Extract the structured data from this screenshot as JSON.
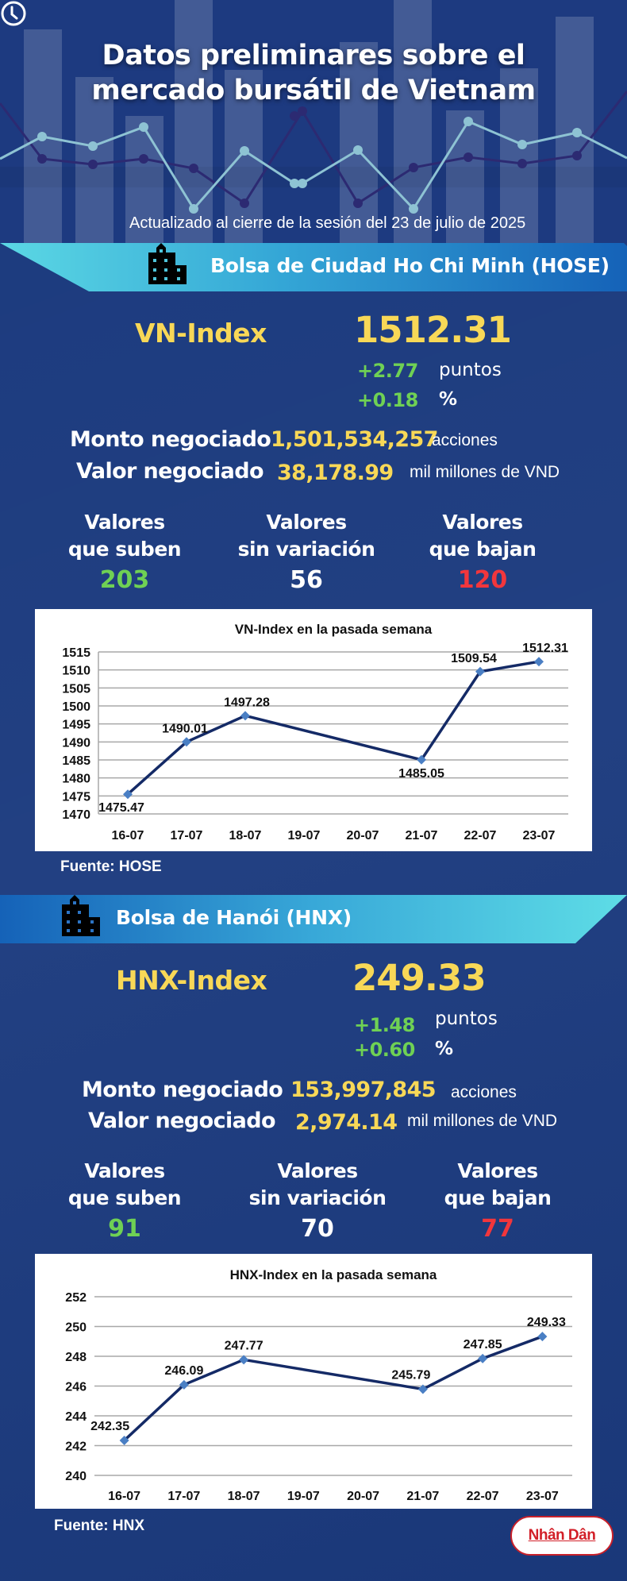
{
  "header": {
    "title_line1": "Datos preliminares sobre el",
    "title_line2": "mercado bursátil de Vietnam",
    "updated": "Actualizado al cierre de la sesión del 23 de julio de 2025",
    "clock_icon": "clock-icon"
  },
  "colors": {
    "background": "#1b3a7e",
    "yellow": "#f8d857",
    "green": "#6fd154",
    "red": "#f2363c",
    "banner_light": "#5bd8e4",
    "banner_dark": "#1562b8",
    "chart_line": "#142a66",
    "chart_marker": "#4a7fc4"
  },
  "hose": {
    "banner": "Bolsa de Ciudad Ho Chi Minh (HOSE)",
    "building_icon": "building-icon",
    "index_name": "VN-Index",
    "index_value": "1512.31",
    "change_points": "+2.77",
    "change_points_unit": "puntos",
    "change_pct": "+0.18",
    "change_pct_unit": "%",
    "volume_label": "Monto negociado",
    "volume_value": "1,501,534,257",
    "volume_unit": "acciones",
    "value_label": "Valor negociado",
    "value_value": "38,178.99",
    "value_unit": "mil millones de VND",
    "up_label_1": "Valores",
    "up_label_2": "que suben",
    "up_count": "203",
    "flat_label_1": "Valores",
    "flat_label_2": "sin variación",
    "flat_count": "56",
    "down_label_1": "Valores",
    "down_label_2": "que bajan",
    "down_count": "120",
    "source": "Fuente: HOSE"
  },
  "hnx": {
    "banner": "Bolsa de Hanói (HNX)",
    "building_icon": "building-icon",
    "index_name": "HNX-Index",
    "index_value": "249.33",
    "change_points": "+1.48",
    "change_points_unit": "puntos",
    "change_pct": "+0.60",
    "change_pct_unit": "%",
    "volume_label": "Monto negociado",
    "volume_value": "153,997,845",
    "volume_unit": "acciones",
    "value_label": "Valor negociado",
    "value_value": "2,974.14",
    "value_unit": "mil millones de VND",
    "up_label_1": "Valores",
    "up_label_2": "que suben",
    "up_count": "91",
    "flat_label_1": "Valores",
    "flat_label_2": "sin variación",
    "flat_count": "70",
    "down_label_1": "Valores",
    "down_label_2": "que bajan",
    "down_count": "77",
    "source": "Fuente:  HNX"
  },
  "logo": {
    "text": "Nhân Dân"
  },
  "chart_data": [
    {
      "type": "line",
      "title": "VN-Index en la pasada semana",
      "categories": [
        "16-07",
        "17-07",
        "18-07",
        "19-07",
        "20-07",
        "21-07",
        "22-07",
        "23-07"
      ],
      "series": [
        {
          "name": "VN-Index",
          "x": [
            "16-07",
            "17-07",
            "18-07",
            "21-07",
            "22-07",
            "23-07"
          ],
          "values": [
            1475.47,
            1490.01,
            1497.28,
            1485.05,
            1509.54,
            1512.31
          ]
        }
      ],
      "data_labels": [
        "1475.47",
        "1490.01",
        "1497.28",
        "1485.05",
        "1509.54",
        "1512.31"
      ],
      "xlabel": "",
      "ylabel": "",
      "ylim": [
        1470,
        1515
      ],
      "yticks": [
        1470,
        1475,
        1480,
        1485,
        1490,
        1495,
        1500,
        1505,
        1510,
        1515
      ],
      "grid": true,
      "legend": "none"
    },
    {
      "type": "line",
      "title": "HNX-Index en la pasada semana",
      "categories": [
        "16-07",
        "17-07",
        "18-07",
        "19-07",
        "20-07",
        "21-07",
        "22-07",
        "23-07"
      ],
      "series": [
        {
          "name": "HNX-Index",
          "x": [
            "16-07",
            "17-07",
            "18-07",
            "21-07",
            "22-07",
            "23-07"
          ],
          "values": [
            242.35,
            246.09,
            247.77,
            245.79,
            247.85,
            249.33
          ]
        }
      ],
      "data_labels": [
        "242.35",
        "246.09",
        "247.77",
        "245.79",
        "247.85",
        "249.33"
      ],
      "xlabel": "",
      "ylabel": "",
      "ylim": [
        240,
        252
      ],
      "yticks": [
        240,
        242,
        244,
        246,
        248,
        250,
        252
      ],
      "grid": true,
      "legend": "none"
    }
  ]
}
